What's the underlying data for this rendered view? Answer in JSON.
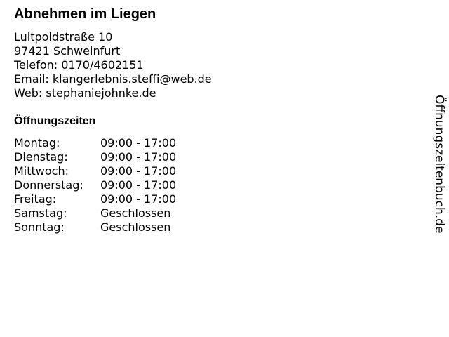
{
  "title": "Abnehmen im Liegen",
  "address": [
    "Luitpoldstraße 10",
    "97421 Schweinfurt",
    "Telefon: 0170/4602151",
    "Email: klangerlebnis.steffi@web.de",
    "Web: stephaniejohnke.de"
  ],
  "hours_heading": "Öffnungszeiten",
  "hours": [
    {
      "day": "Montag:",
      "time": "09:00 - 17:00"
    },
    {
      "day": "Dienstag:",
      "time": "09:00 - 17:00"
    },
    {
      "day": "Mittwoch:",
      "time": "09:00 - 17:00"
    },
    {
      "day": "Donnerstag:",
      "time": "09:00 - 17:00"
    },
    {
      "day": "Freitag:",
      "time": "09:00 - 17:00"
    },
    {
      "day": "Samstag:",
      "time": "Geschlossen"
    },
    {
      "day": "Sonntag:",
      "time": "Geschlossen"
    }
  ],
  "watermark": "Öffnungszeitenbuch.de"
}
